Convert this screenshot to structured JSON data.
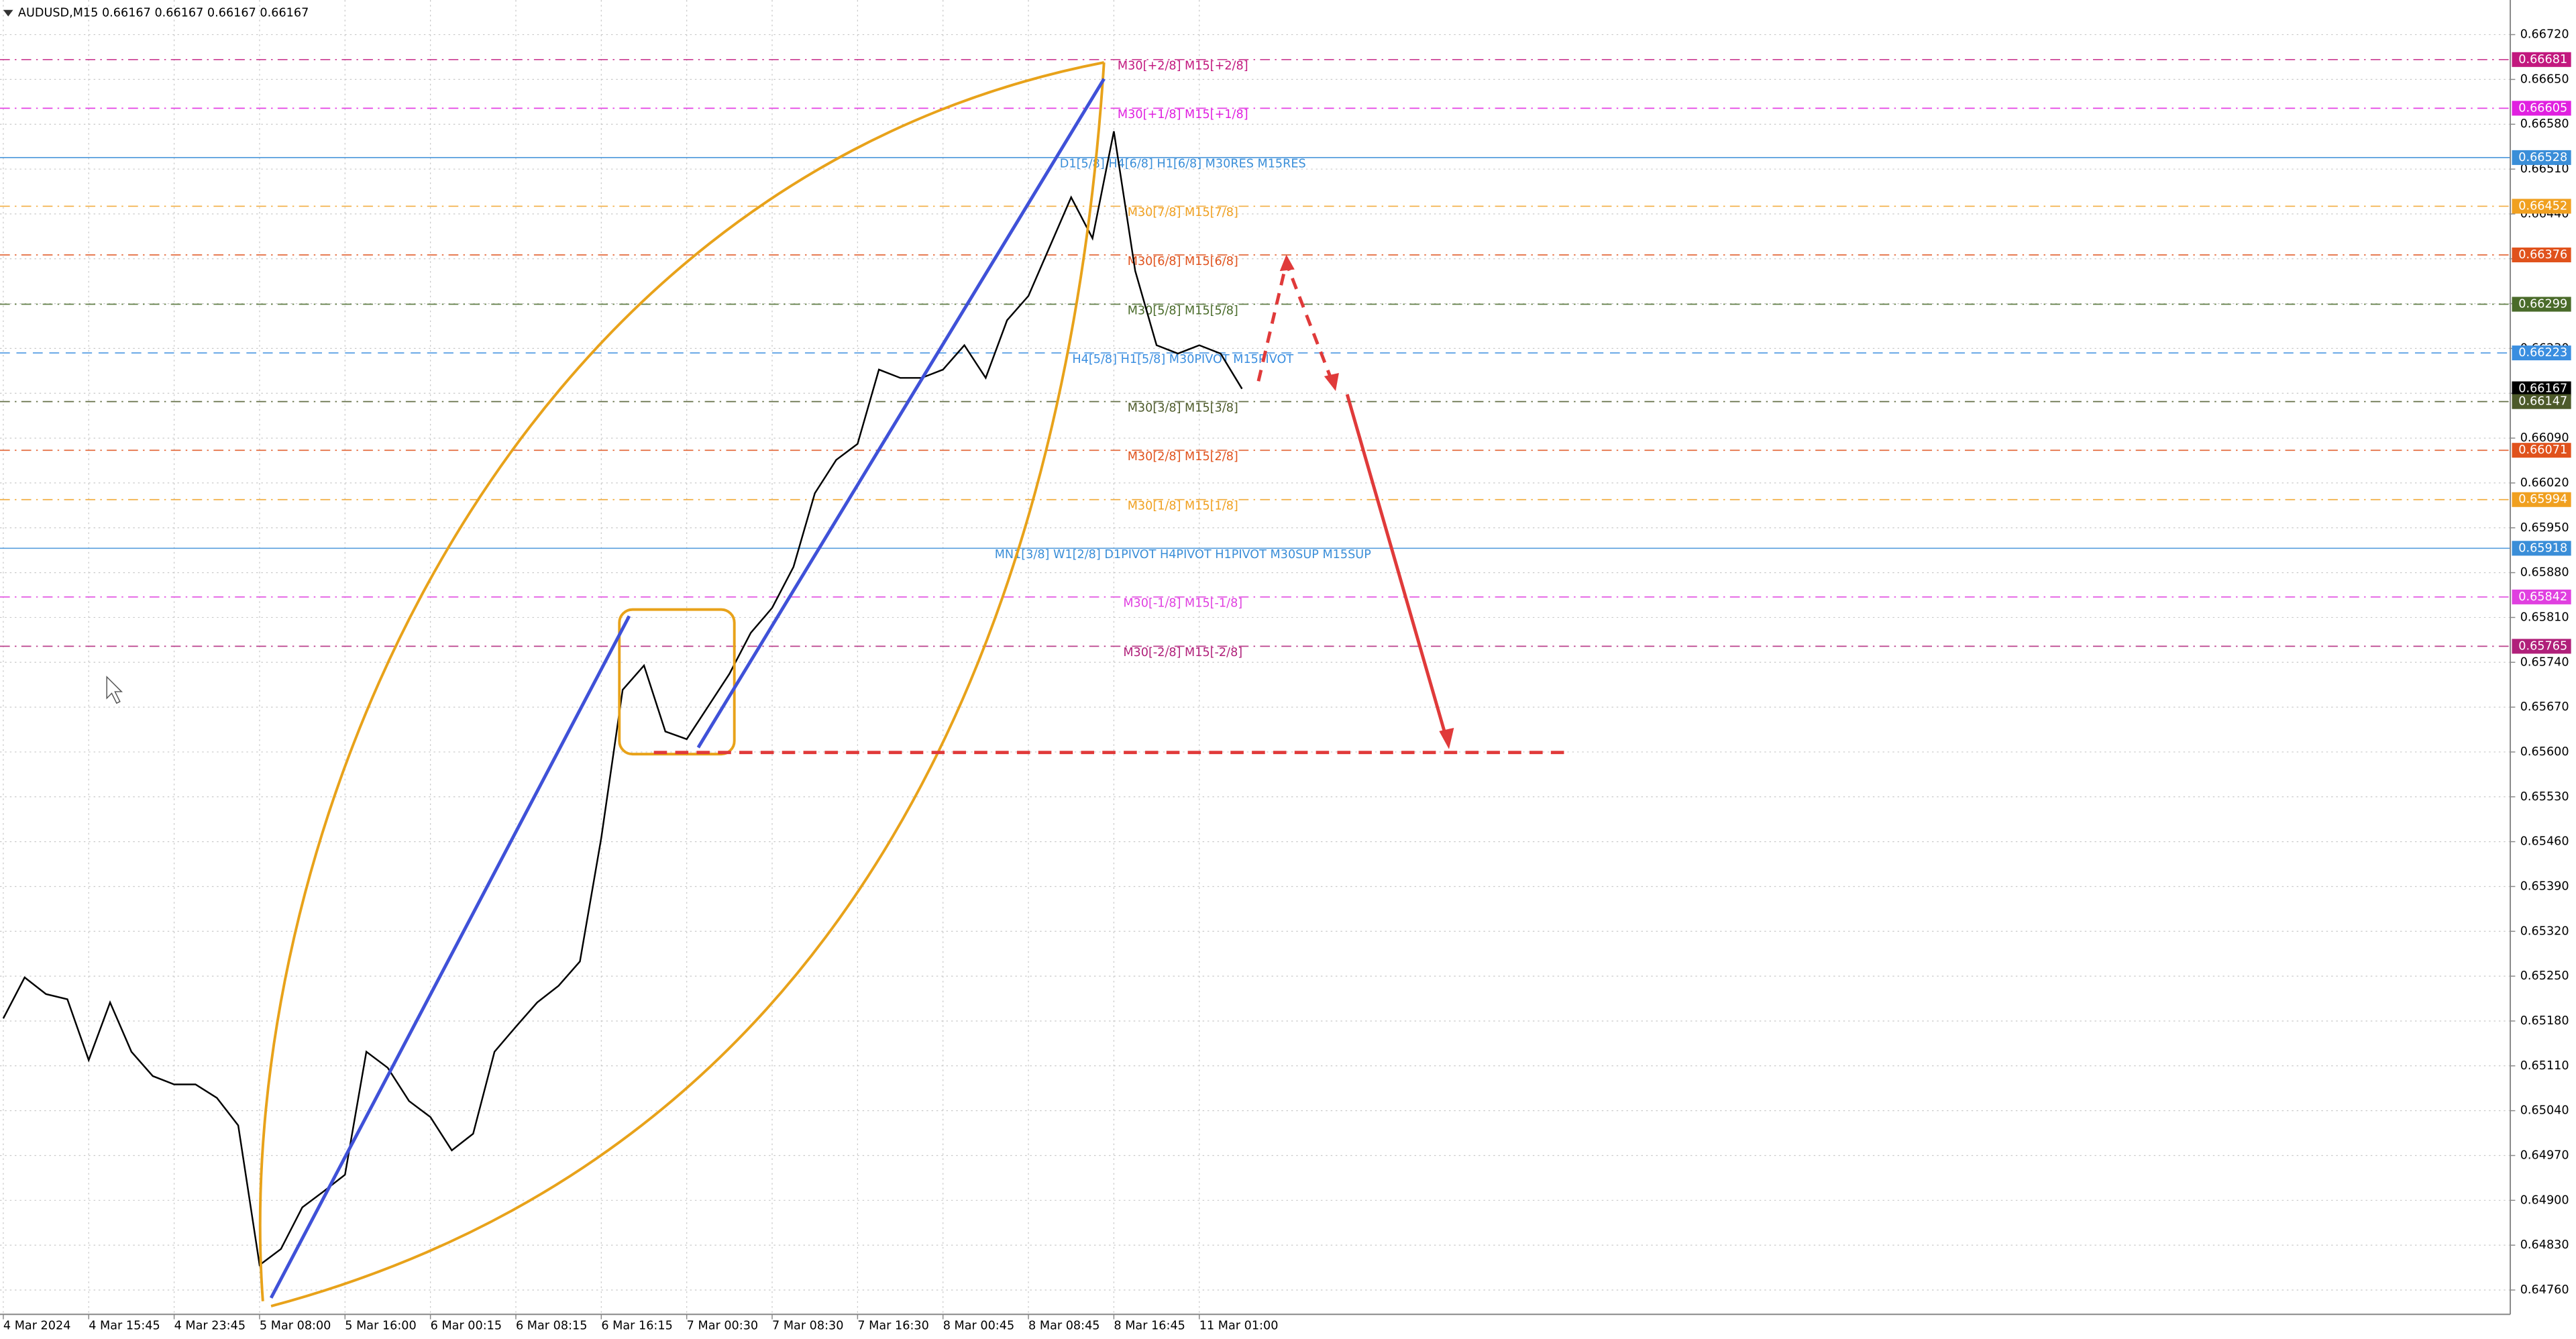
{
  "chart_data": {
    "type": "line",
    "title": "AUDUSD,M15  0.66167 0.66167 0.66167 0.66167",
    "categories": [
      "4 Mar 2024",
      null,
      null,
      null,
      "4 Mar 15:45",
      null,
      null,
      null,
      "4 Mar 23:45",
      null,
      null,
      null,
      "5 Mar 08:00",
      null,
      null,
      null,
      "5 Mar 16:00",
      null,
      null,
      null,
      "6 Mar 00:15",
      null,
      null,
      null,
      "6 Mar 08:15",
      null,
      null,
      null,
      "6 Mar 16:15",
      null,
      null,
      null,
      "7 Mar 00:30",
      null,
      null,
      null,
      "7 Mar 08:30",
      null,
      null,
      null,
      "7 Mar 16:30",
      null,
      null,
      null,
      "8 Mar 00:45",
      null,
      null,
      null,
      "8 Mar 08:45",
      null,
      null,
      null,
      "8 Mar 16:45",
      null,
      null,
      null,
      "11 Mar 01:00",
      null,
      null
    ],
    "values": [
      0.65184,
      0.65248,
      0.65222,
      0.65214,
      0.65119,
      0.65209,
      0.65132,
      0.65094,
      0.65081,
      0.65081,
      0.6506,
      0.65017,
      0.64799,
      0.64824,
      0.64889,
      0.64914,
      0.6494,
      0.65132,
      0.65107,
      0.65055,
      0.6503,
      0.64978,
      0.65004,
      0.65132,
      0.65171,
      0.65209,
      0.65235,
      0.65273,
      0.65466,
      0.65697,
      0.65735,
      0.65632,
      0.6562,
      0.65671,
      0.65722,
      0.65786,
      0.65825,
      0.65889,
      0.66004,
      0.66056,
      0.66081,
      0.66197,
      0.66184,
      0.66184,
      0.66197,
      0.66235,
      0.66184,
      0.66274,
      0.66312,
      0.66389,
      0.66466,
      0.66402,
      0.66569,
      0.66351,
      0.66235,
      0.66222,
      0.66235,
      0.66222,
      0.66167
    ],
    "color": "#000000",
    "ylim": [
      0.64722,
      0.66774
    ],
    "yticks": [
      {
        "value": 0.6672,
        "label": "0.66720"
      },
      {
        "value": 0.6665,
        "label": "0.66650"
      },
      {
        "value": 0.6658,
        "label": "0.66580"
      },
      {
        "value": 0.6651,
        "label": "0.66510"
      },
      {
        "value": 0.6644,
        "label": "0.66440"
      },
      {
        "value": 0.6637,
        "label": "0.66370"
      },
      {
        "value": 0.663,
        "label": "0.66300"
      },
      {
        "value": 0.6623,
        "label": "0.66230"
      },
      {
        "value": 0.6616,
        "label": "0.66160"
      },
      {
        "value": 0.6609,
        "label": "0.66090"
      },
      {
        "value": 0.6602,
        "label": "0.66020"
      },
      {
        "value": 0.6595,
        "label": "0.65950"
      },
      {
        "value": 0.6588,
        "label": "0.65880"
      },
      {
        "value": 0.6581,
        "label": "0.65810"
      },
      {
        "value": 0.6574,
        "label": "0.65740"
      },
      {
        "value": 0.6567,
        "label": "0.65670"
      },
      {
        "value": 0.656,
        "label": "0.65600"
      },
      {
        "value": 0.6553,
        "label": "0.65530"
      },
      {
        "value": 0.6546,
        "label": "0.65460"
      },
      {
        "value": 0.6539,
        "label": "0.65390"
      },
      {
        "value": 0.6532,
        "label": "0.65320"
      },
      {
        "value": 0.6525,
        "label": "0.65250"
      },
      {
        "value": 0.6518,
        "label": "0.65180"
      },
      {
        "value": 0.6511,
        "label": "0.65110"
      },
      {
        "value": 0.6504,
        "label": "0.65040"
      },
      {
        "value": 0.6497,
        "label": "0.64970"
      },
      {
        "value": 0.649,
        "label": "0.64900"
      },
      {
        "value": 0.6483,
        "label": "0.64830"
      },
      {
        "value": 0.6476,
        "label": "0.64760"
      }
    ],
    "grid": true,
    "levels": [
      {
        "value": 0.66681,
        "color": "#c2187e",
        "style": "dashdot",
        "text": "M30[+2/8] M15[+2/8]"
      },
      {
        "value": 0.66605,
        "color": "#e020e0",
        "style": "dashdot",
        "text": "M30[+1/8] M15[+1/8]"
      },
      {
        "value": 0.66528,
        "color": "#3a8ed8",
        "style": "solid",
        "text": "D1[5/8] H4[6/8] H1[6/8] M30RES M15RES"
      },
      {
        "value": 0.66452,
        "color": "#f0a020",
        "style": "dashdot",
        "text": "M30[7/8] M15[7/8]"
      },
      {
        "value": 0.66376,
        "color": "#e0521c",
        "style": "dashdot",
        "text": "M30[6/8] M15[6/8]"
      },
      {
        "value": 0.66299,
        "color": "#4a6b2a",
        "style": "dashdot",
        "text": "M30[5/8] M15[5/8]"
      },
      {
        "value": 0.66223,
        "color": "#3a8ee0",
        "style": "dashed",
        "text": "H4[5/8] H1[5/8] M30PIVOT M15PIVOT"
      },
      {
        "value": 0.66167,
        "color": "#000000",
        "style": "none"
      },
      {
        "value": 0.66147,
        "color": "#4d5a2a",
        "style": "dashdot",
        "text": "M30[3/8] M15[3/8]"
      },
      {
        "value": 0.66071,
        "color": "#e0521c",
        "style": "dashdot",
        "text": "M30[2/8] M15[2/8]"
      },
      {
        "value": 0.65994,
        "color": "#f0a020",
        "style": "dashdot",
        "text": "M30[1/8] M15[1/8]"
      },
      {
        "value": 0.65918,
        "color": "#3a8ed8",
        "style": "solid",
        "text": "MN1[3/8] W1[2/8] D1PIVOT H4PIVOT H1PIVOT M30SUP M15SUP"
      },
      {
        "value": 0.65842,
        "color": "#e040e0",
        "style": "dashdot",
        "text": "M30[-1/8] M15[-1/8]"
      },
      {
        "value": 0.65765,
        "color": "#b0207a",
        "style": "dashdot",
        "text": "M30[-2/8] M15[-2/8]"
      }
    ]
  }
}
